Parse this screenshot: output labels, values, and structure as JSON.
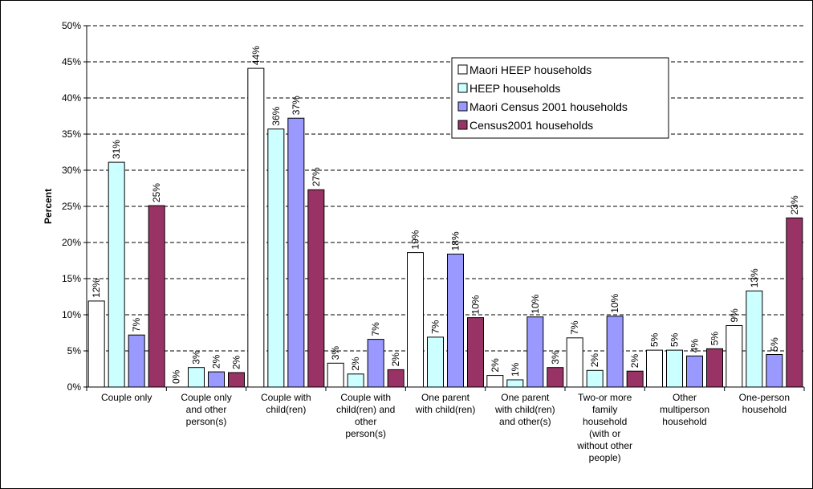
{
  "chart_data": {
    "type": "bar",
    "title": "",
    "xlabel": "",
    "ylabel": "Percent",
    "ylim": [
      0,
      50
    ],
    "yticks": [
      "0%",
      "5%",
      "10%",
      "15%",
      "20%",
      "25%",
      "30%",
      "35%",
      "40%",
      "45%",
      "50%"
    ],
    "grid": true,
    "legend_position": "top-right",
    "categories": [
      [
        "Couple only"
      ],
      [
        "Couple only",
        "and other",
        "person(s)"
      ],
      [
        "Couple with",
        "child(ren)"
      ],
      [
        "Couple with",
        "child(ren) and",
        "other",
        "person(s)"
      ],
      [
        "One parent",
        "with child(ren)"
      ],
      [
        "One parent",
        "with child(ren)",
        "and other(s)"
      ],
      [
        "Two-or more",
        "family",
        "household",
        "(with or",
        "without other",
        "people)"
      ],
      [
        "Other",
        "multiperson",
        "household"
      ],
      [
        "One-person",
        "household"
      ]
    ],
    "series": [
      {
        "name": "Maori HEEP households",
        "color": "#FFFFFF",
        "values": [
          11.9,
          0,
          44.1,
          3.3,
          18.6,
          1.6,
          6.8,
          5.1,
          8.5
        ],
        "labels": [
          "12%",
          "0%",
          "44%",
          "3%",
          "19%",
          "2%",
          "7%",
          "5%",
          "9%"
        ]
      },
      {
        "name": "HEEP households",
        "color": "#CCFFFF",
        "values": [
          31.1,
          2.7,
          35.7,
          1.8,
          6.9,
          1.0,
          2.3,
          5.1,
          13.3
        ],
        "labels": [
          "31%",
          "3%",
          "36%",
          "2%",
          "7%",
          "1%",
          "2%",
          "5%",
          "13%"
        ]
      },
      {
        "name": "Maori Census 2001 households",
        "color": "#9999FF",
        "values": [
          7.2,
          2.1,
          37.2,
          6.6,
          18.4,
          9.7,
          9.8,
          4.3,
          4.5
        ],
        "labels": [
          "7%",
          "2%",
          "37%",
          "7%",
          "18%",
          "10%",
          "10%",
          "4%",
          "5%"
        ]
      },
      {
        "name": "Census2001 households",
        "color": "#993366",
        "values": [
          25.1,
          2.0,
          27.3,
          2.4,
          9.6,
          2.7,
          2.2,
          5.3,
          23.4
        ],
        "labels": [
          "25%",
          "2%",
          "27%",
          "2%",
          "10%",
          "3%",
          "2%",
          "5%",
          "23%"
        ]
      }
    ]
  }
}
